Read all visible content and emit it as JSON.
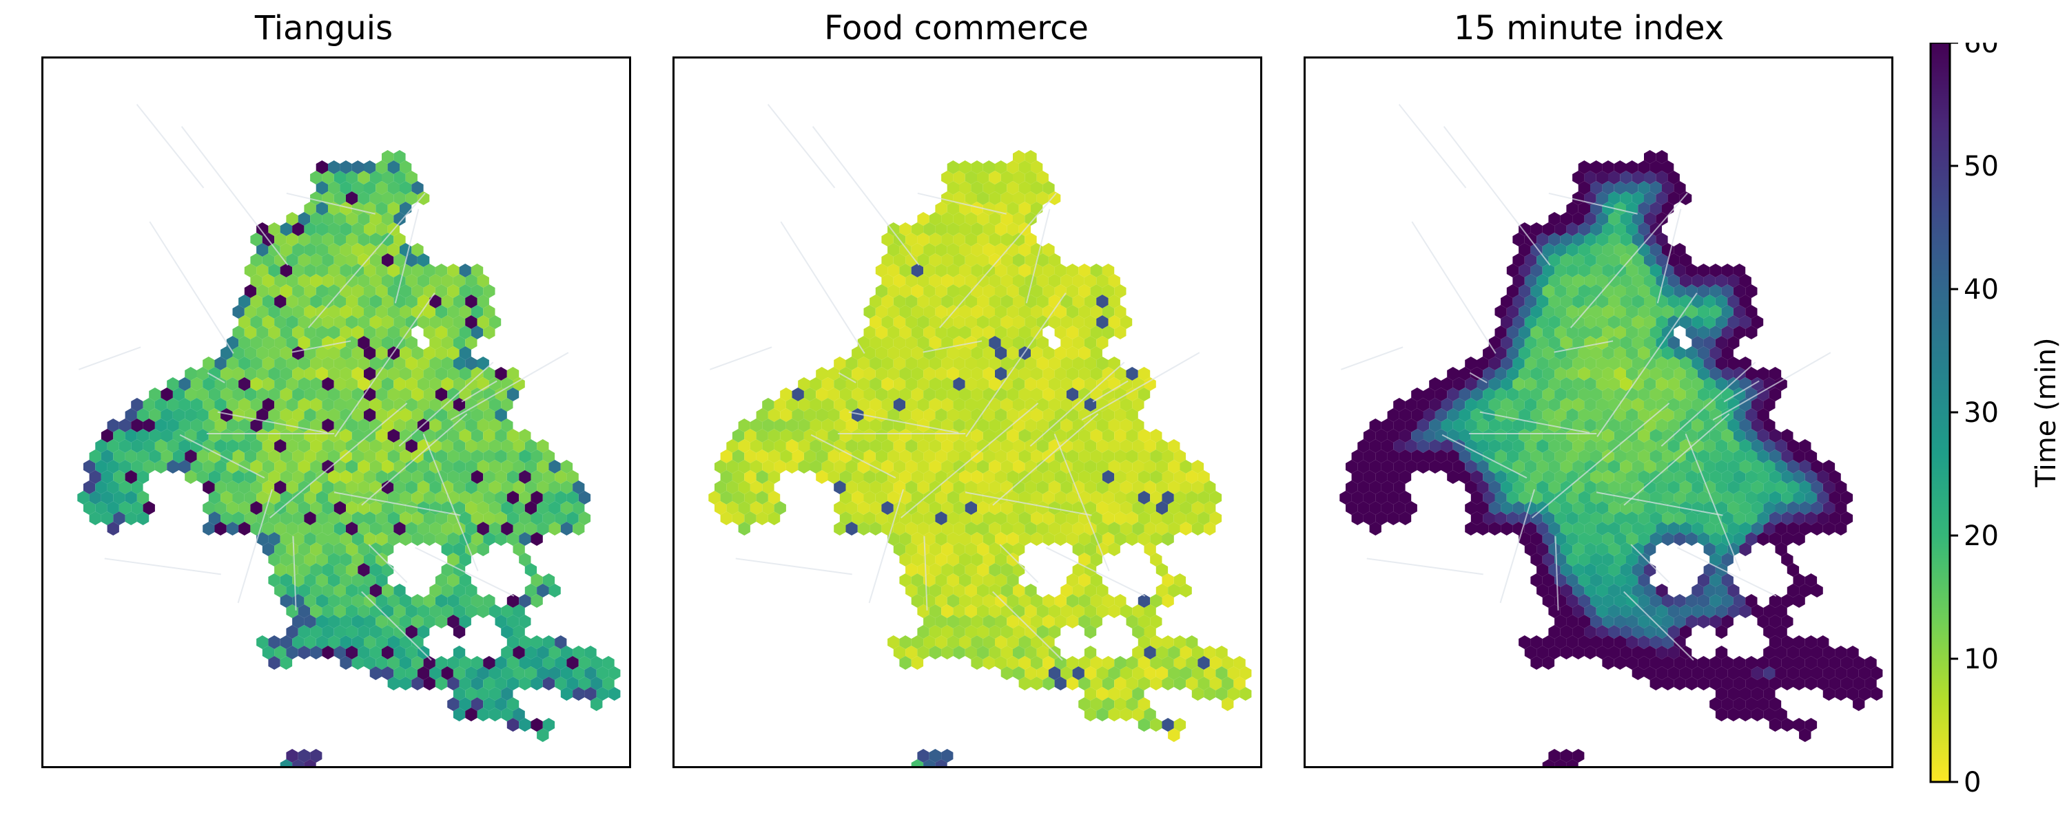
{
  "panels": [
    {
      "title": "Tianguis",
      "mode": "tianguis"
    },
    {
      "title": "Food commerce",
      "mode": "food"
    },
    {
      "title": "15 minute index",
      "mode": "index"
    }
  ],
  "colorbar": {
    "label": "Time (min)",
    "ticks": [
      "0",
      "10",
      "20",
      "30",
      "40",
      "50",
      "60"
    ],
    "min": 0,
    "max": 60,
    "colormap": "viridis_r",
    "colors": [
      "#fde725",
      "#b5de2b",
      "#6ece58",
      "#35b779",
      "#1f9e89",
      "#26828e",
      "#31688e",
      "#3e4989",
      "#482878",
      "#440154"
    ]
  },
  "colors": {
    "road": "#dde3ea",
    "frame": "#000000"
  }
}
